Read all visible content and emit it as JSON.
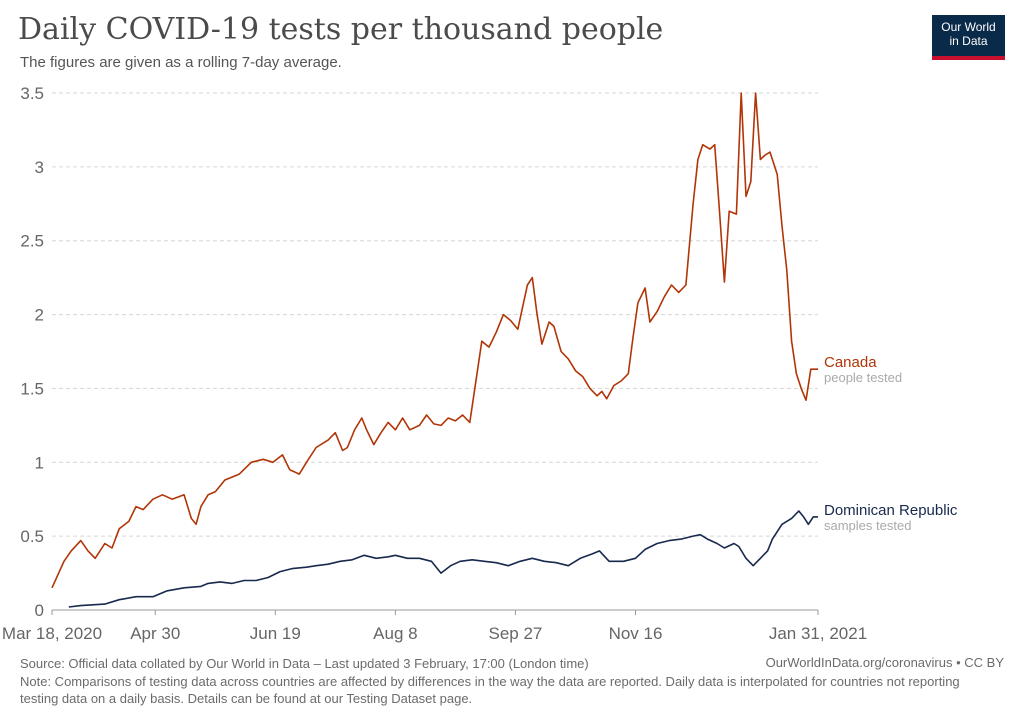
{
  "header": {
    "title": "Daily COVID-19 tests per thousand people",
    "subtitle": "The figures are given as a rolling 7-day average.",
    "logo_line1": "Our World",
    "logo_line2": "in Data"
  },
  "footer": {
    "source": "Source: Official data collated by Our World in Data – Last updated 3 February, 17:00 (London time)",
    "url": "OurWorldInData.org/coronavirus • CC BY",
    "note": "Note: Comparisons of testing data across countries are affected by differences in the way the data are reported. Daily data is interpolated for countries not reporting testing data on a daily basis. Details can be found at our Testing Dataset page."
  },
  "chart_data": {
    "type": "line",
    "title": "Daily COVID-19 tests per thousand people",
    "subtitle": "The figures are given as a rolling 7-day average.",
    "x_ticks": [
      "Mar 18, 2020",
      "Apr 30",
      "Jun 19",
      "Aug 8",
      "Sep 27",
      "Nov 16",
      "Jan 31, 2021"
    ],
    "x_tick_days": [
      0,
      43,
      93,
      143,
      193,
      243,
      319
    ],
    "x_range_days": [
      0,
      319
    ],
    "ylim": [
      0,
      3.5
    ],
    "y_ticks": [
      0,
      0.5,
      1,
      1.5,
      2,
      2.5,
      3,
      3.5
    ],
    "y_tick_labels": [
      "0",
      "0.5",
      "1",
      "1.5",
      "2",
      "2.5",
      "3",
      "3.5"
    ],
    "grid": "horizontal dashed",
    "series": [
      {
        "name": "Canada",
        "sublabel": "people tested",
        "color": "#b13507",
        "points": [
          [
            0,
            0.15
          ],
          [
            5,
            0.33
          ],
          [
            8,
            0.4
          ],
          [
            12,
            0.47
          ],
          [
            15,
            0.4
          ],
          [
            18,
            0.35
          ],
          [
            22,
            0.45
          ],
          [
            25,
            0.42
          ],
          [
            28,
            0.55
          ],
          [
            32,
            0.6
          ],
          [
            35,
            0.7
          ],
          [
            38,
            0.68
          ],
          [
            42,
            0.75
          ],
          [
            46,
            0.78
          ],
          [
            50,
            0.75
          ],
          [
            55,
            0.78
          ],
          [
            58,
            0.62
          ],
          [
            60,
            0.58
          ],
          [
            62,
            0.7
          ],
          [
            65,
            0.78
          ],
          [
            68,
            0.8
          ],
          [
            72,
            0.88
          ],
          [
            78,
            0.92
          ],
          [
            83,
            1.0
          ],
          [
            88,
            1.02
          ],
          [
            92,
            1.0
          ],
          [
            96,
            1.05
          ],
          [
            99,
            0.95
          ],
          [
            103,
            0.92
          ],
          [
            106,
            1.0
          ],
          [
            110,
            1.1
          ],
          [
            115,
            1.15
          ],
          [
            118,
            1.2
          ],
          [
            121,
            1.08
          ],
          [
            123,
            1.1
          ],
          [
            126,
            1.22
          ],
          [
            129,
            1.3
          ],
          [
            131,
            1.22
          ],
          [
            134,
            1.12
          ],
          [
            137,
            1.2
          ],
          [
            140,
            1.27
          ],
          [
            143,
            1.22
          ],
          [
            146,
            1.3
          ],
          [
            149,
            1.22
          ],
          [
            153,
            1.25
          ],
          [
            156,
            1.32
          ],
          [
            159,
            1.26
          ],
          [
            162,
            1.25
          ],
          [
            165,
            1.3
          ],
          [
            168,
            1.28
          ],
          [
            171,
            1.32
          ],
          [
            174,
            1.27
          ],
          [
            177,
            1.6
          ],
          [
            179,
            1.82
          ],
          [
            182,
            1.78
          ],
          [
            185,
            1.88
          ],
          [
            188,
            2.0
          ],
          [
            191,
            1.96
          ],
          [
            194,
            1.9
          ],
          [
            196,
            2.05
          ],
          [
            198,
            2.2
          ],
          [
            200,
            2.25
          ],
          [
            202,
            2.0
          ],
          [
            204,
            1.8
          ],
          [
            207,
            1.95
          ],
          [
            209,
            1.92
          ],
          [
            212,
            1.75
          ],
          [
            215,
            1.7
          ],
          [
            218,
            1.62
          ],
          [
            221,
            1.58
          ],
          [
            224,
            1.5
          ],
          [
            227,
            1.45
          ],
          [
            229,
            1.48
          ],
          [
            231,
            1.43
          ],
          [
            234,
            1.52
          ],
          [
            237,
            1.55
          ],
          [
            240,
            1.6
          ],
          [
            242,
            1.85
          ],
          [
            244,
            2.08
          ],
          [
            247,
            2.18
          ],
          [
            249,
            1.95
          ],
          [
            252,
            2.02
          ],
          [
            255,
            2.12
          ],
          [
            258,
            2.2
          ],
          [
            261,
            2.15
          ],
          [
            264,
            2.2
          ],
          [
            267,
            2.75
          ],
          [
            269,
            3.05
          ],
          [
            271,
            3.15
          ],
          [
            274,
            3.12
          ],
          [
            276,
            3.15
          ],
          [
            278,
            2.7
          ],
          [
            280,
            2.22
          ],
          [
            282,
            2.7
          ],
          [
            285,
            2.68
          ],
          [
            287,
            3.5
          ],
          [
            289,
            2.8
          ],
          [
            291,
            2.9
          ],
          [
            293,
            3.5
          ],
          [
            295,
            3.05
          ],
          [
            297,
            3.08
          ],
          [
            299,
            3.1
          ],
          [
            302,
            2.95
          ],
          [
            304,
            2.6
          ],
          [
            306,
            2.3
          ],
          [
            308,
            1.82
          ],
          [
            310,
            1.6
          ],
          [
            312,
            1.5
          ],
          [
            314,
            1.42
          ],
          [
            316,
            1.63
          ],
          [
            319,
            1.63
          ]
        ]
      },
      {
        "name": "Dominican Republic",
        "sublabel": "samples tested",
        "color": "#18294e",
        "points": [
          [
            7,
            0.02
          ],
          [
            12,
            0.03
          ],
          [
            22,
            0.04
          ],
          [
            28,
            0.07
          ],
          [
            35,
            0.09
          ],
          [
            42,
            0.09
          ],
          [
            48,
            0.13
          ],
          [
            55,
            0.15
          ],
          [
            62,
            0.16
          ],
          [
            65,
            0.18
          ],
          [
            70,
            0.19
          ],
          [
            75,
            0.18
          ],
          [
            80,
            0.2
          ],
          [
            85,
            0.2
          ],
          [
            90,
            0.22
          ],
          [
            95,
            0.26
          ],
          [
            100,
            0.28
          ],
          [
            106,
            0.29
          ],
          [
            110,
            0.3
          ],
          [
            115,
            0.31
          ],
          [
            120,
            0.33
          ],
          [
            125,
            0.34
          ],
          [
            130,
            0.37
          ],
          [
            135,
            0.35
          ],
          [
            140,
            0.36
          ],
          [
            143,
            0.37
          ],
          [
            148,
            0.35
          ],
          [
            153,
            0.35
          ],
          [
            158,
            0.33
          ],
          [
            162,
            0.25
          ],
          [
            166,
            0.3
          ],
          [
            170,
            0.33
          ],
          [
            175,
            0.34
          ],
          [
            180,
            0.33
          ],
          [
            185,
            0.32
          ],
          [
            190,
            0.3
          ],
          [
            195,
            0.33
          ],
          [
            200,
            0.35
          ],
          [
            205,
            0.33
          ],
          [
            210,
            0.32
          ],
          [
            215,
            0.3
          ],
          [
            220,
            0.35
          ],
          [
            225,
            0.38
          ],
          [
            228,
            0.4
          ],
          [
            232,
            0.33
          ],
          [
            238,
            0.33
          ],
          [
            243,
            0.35
          ],
          [
            247,
            0.41
          ],
          [
            252,
            0.45
          ],
          [
            257,
            0.47
          ],
          [
            262,
            0.48
          ],
          [
            267,
            0.5
          ],
          [
            270,
            0.51
          ],
          [
            273,
            0.48
          ],
          [
            277,
            0.45
          ],
          [
            280,
            0.42
          ],
          [
            284,
            0.45
          ],
          [
            286,
            0.43
          ],
          [
            289,
            0.35
          ],
          [
            292,
            0.3
          ],
          [
            295,
            0.35
          ],
          [
            298,
            0.4
          ],
          [
            300,
            0.48
          ],
          [
            304,
            0.58
          ],
          [
            308,
            0.62
          ],
          [
            311,
            0.67
          ],
          [
            313,
            0.63
          ],
          [
            315,
            0.58
          ],
          [
            317,
            0.63
          ],
          [
            319,
            0.63
          ]
        ]
      }
    ]
  }
}
